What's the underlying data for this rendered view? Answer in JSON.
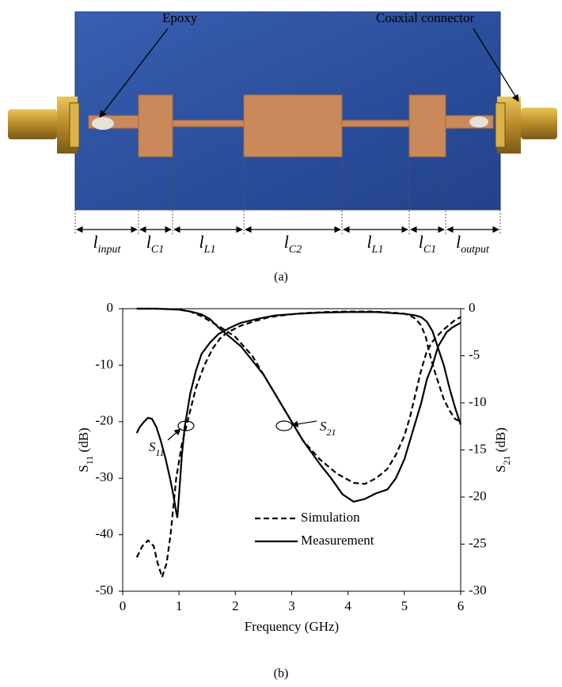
{
  "photo": {
    "labels": {
      "epoxy": "Epoxy",
      "connector": "Coaxial connector"
    },
    "dimensions": [
      {
        "main": "l",
        "sub": "input"
      },
      {
        "main": "l",
        "sub": "C1"
      },
      {
        "main": "l",
        "sub": "L1"
      },
      {
        "main": "l",
        "sub": "C2"
      },
      {
        "main": "l",
        "sub": "L1"
      },
      {
        "main": "l",
        "sub": "C1"
      },
      {
        "main": "l",
        "sub": "output"
      }
    ],
    "caption": "(a)"
  },
  "chart_data": {
    "type": "line",
    "caption": "(b)",
    "xlabel": "Frequency (GHz)",
    "ylabel": {
      "main": "S",
      "sub": "11",
      "unit": " (dB)"
    },
    "y2label": {
      "main": "S",
      "sub": "21",
      "unit": " (dB)"
    },
    "xlim": [
      0,
      6
    ],
    "xticks": [
      0,
      1,
      2,
      3,
      4,
      5,
      6
    ],
    "ylim": [
      -50,
      0
    ],
    "yticks": [
      0,
      -10,
      -20,
      -30,
      -40,
      -50
    ],
    "y2lim": [
      -30,
      0
    ],
    "y2ticks": [
      0,
      -5,
      -10,
      -15,
      -20,
      -25,
      -30
    ],
    "annotations": [
      {
        "main": "S",
        "sub": "11"
      },
      {
        "main": "S",
        "sub": "21"
      }
    ],
    "series": [
      {
        "name": "Simulation",
        "color": "#000000",
        "dashed": true,
        "s11": {
          "x": [
            0.25,
            0.35,
            0.45,
            0.55,
            0.62,
            0.7,
            0.78,
            0.85,
            0.95,
            1.05,
            1.15,
            1.3,
            1.45,
            1.6,
            1.75,
            1.9,
            2.1,
            2.35,
            2.6,
            2.9,
            3.2,
            3.6,
            4.0,
            4.4,
            4.8,
            5.0,
            5.1,
            5.2,
            5.3,
            5.38,
            5.45,
            5.52,
            5.6,
            5.7,
            5.8,
            5.9,
            6.0
          ],
          "values": [
            -44,
            -42,
            -41,
            -42,
            -45,
            -47.5,
            -45,
            -40,
            -30,
            -24,
            -20,
            -14,
            -10,
            -7,
            -5,
            -4,
            -3,
            -2.2,
            -1.5,
            -1.1,
            -0.8,
            -0.6,
            -0.5,
            -0.5,
            -0.7,
            -0.9,
            -1.2,
            -1.8,
            -3,
            -5,
            -8,
            -10.5,
            -13,
            -16,
            -18,
            -19.5,
            -20
          ]
        },
        "s21": {
          "x": [
            0.25,
            0.6,
            1.0,
            1.2,
            1.4,
            1.6,
            1.8,
            2.0,
            2.3,
            2.6,
            2.9,
            3.2,
            3.5,
            3.8,
            4.1,
            4.3,
            4.5,
            4.7,
            4.85,
            5.0,
            5.1,
            5.2,
            5.3,
            5.4,
            5.5,
            5.6,
            5.7,
            5.8,
            5.9,
            6.0
          ],
          "values": [
            0,
            0,
            -0.1,
            -0.3,
            -0.8,
            -1.5,
            -2.2,
            -3,
            -5,
            -8,
            -11,
            -14,
            -16,
            -17.5,
            -18.5,
            -18.6,
            -18,
            -17,
            -15.5,
            -13.5,
            -11.5,
            -9,
            -6.5,
            -4.5,
            -3.5,
            -2.8,
            -2.2,
            -1.7,
            -1.2,
            -0.9
          ]
        }
      },
      {
        "name": "Measurement",
        "color": "#000000",
        "dashed": false,
        "s11": {
          "x": [
            0.25,
            0.3,
            0.38,
            0.45,
            0.52,
            0.6,
            0.68,
            0.76,
            0.84,
            0.9,
            0.95,
            0.97,
            1.0,
            1.05,
            1.1,
            1.2,
            1.3,
            1.4,
            1.55,
            1.7,
            1.9,
            2.1,
            2.4,
            2.7,
            3.1,
            3.5,
            4.0,
            4.5,
            4.8,
            5.0,
            5.2,
            5.3,
            5.4,
            5.5,
            5.6,
            5.7,
            5.8,
            5.9,
            6.0
          ],
          "values": [
            -22,
            -21,
            -20,
            -19.3,
            -19.5,
            -21,
            -23.5,
            -26.5,
            -30,
            -33,
            -36,
            -37,
            -33,
            -26,
            -21,
            -15,
            -11,
            -8,
            -6,
            -4.5,
            -3.4,
            -2.5,
            -1.8,
            -1.2,
            -0.9,
            -0.7,
            -0.6,
            -0.6,
            -0.8,
            -0.9,
            -1.2,
            -1.5,
            -2.3,
            -4,
            -7,
            -10,
            -14,
            -17.5,
            -20.5
          ]
        },
        "s21": {
          "x": [
            0.25,
            0.6,
            1.0,
            1.2,
            1.4,
            1.55,
            1.7,
            1.9,
            2.1,
            2.3,
            2.5,
            2.7,
            2.9,
            3.2,
            3.5,
            3.7,
            3.9,
            4.1,
            4.3,
            4.5,
            4.7,
            4.85,
            5.0,
            5.15,
            5.3,
            5.4,
            5.5,
            5.55,
            5.6,
            5.7,
            5.75,
            5.85,
            6.0
          ],
          "values": [
            0,
            0,
            -0.1,
            -0.3,
            -0.6,
            -1.1,
            -2,
            -3,
            -4,
            -5.5,
            -7,
            -9,
            -11,
            -14,
            -16.5,
            -18,
            -19.7,
            -20.5,
            -20.2,
            -19.6,
            -19.2,
            -18,
            -16,
            -13,
            -10,
            -7.5,
            -6,
            -5,
            -4,
            -3,
            -2.5,
            -2,
            -1.5
          ]
        }
      }
    ]
  }
}
